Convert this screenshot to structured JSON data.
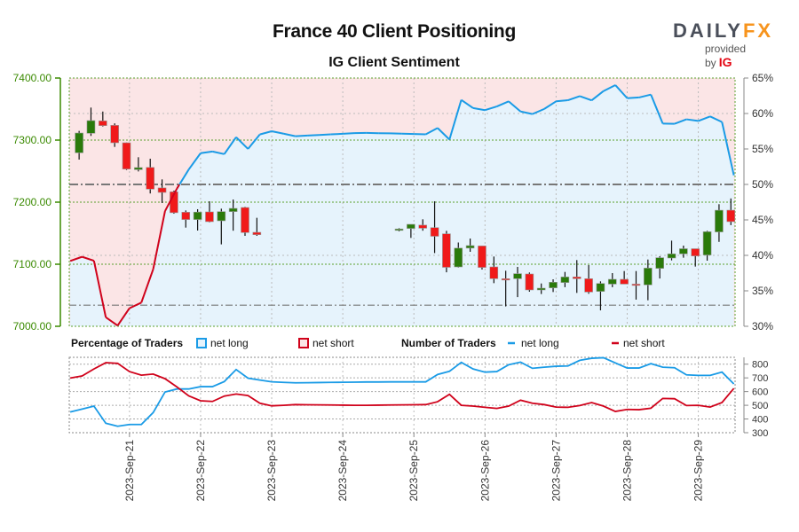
{
  "header": {
    "title": "France 40 Client Positioning",
    "subtitle": "IG Client Sentiment"
  },
  "logo": {
    "brand_a": "DAILY",
    "brand_b": "FX",
    "provided_by": "provided by",
    "ig": "IG"
  },
  "legend": {
    "pct_title": "Percentage of Traders",
    "pct_long": "net long",
    "pct_short": "net short",
    "num_title": "Number of Traders",
    "num_long": "net long",
    "num_short": "net short"
  },
  "colors": {
    "net_long": "#1a9be6",
    "net_short": "#d0021b",
    "bull": "#2a7a0a",
    "bear": "#f01a1a",
    "long_fill": "#e6f3fc",
    "short_fill": "#fbe5e6",
    "price_axis": "#3a8a00"
  },
  "chart_data": [
    {
      "type": "candlestick",
      "title": "France 40 Client Positioning",
      "price_ylim": [
        7000,
        7400
      ],
      "price_ticks": [
        "7000.00",
        "7100.00",
        "7200.00",
        "7300.00",
        "7400.00"
      ],
      "pct_ylim": [
        30,
        65
      ],
      "pct_ticks": [
        "30%",
        "35%",
        "40%",
        "45%",
        "50%",
        "55%",
        "60%",
        "65%"
      ],
      "reference_pct": 50,
      "reference_price": 7034,
      "grid": true,
      "xlim": [
        "2023-09-20 03:40",
        "2023-09-29 12:25"
      ],
      "x_ticks": [
        {
          "t": "2023-09-21 00:00",
          "label": "2023-Sep-21"
        },
        {
          "t": "2023-09-22 00:00",
          "label": "2023-Sep-22"
        },
        {
          "t": "2023-09-23 00:00",
          "label": "2023-Sep-23"
        },
        {
          "t": "2023-09-24 00:00",
          "label": "2023-Sep-24"
        },
        {
          "t": "2023-09-25 00:00",
          "label": "2023-Sep-25"
        },
        {
          "t": "2023-09-26 00:00",
          "label": "2023-Sep-26"
        },
        {
          "t": "2023-09-27 00:00",
          "label": "2023-Sep-27"
        },
        {
          "t": "2023-09-28 00:00",
          "label": "2023-Sep-28"
        },
        {
          "t": "2023-09-29 00:00",
          "label": "2023-Sep-29"
        }
      ],
      "candles_ohlc": [
        [
          "2023-09-20 07:00",
          7279.5,
          7314.8,
          7268.6,
          7311.4
        ],
        [
          "2023-09-20 11:00",
          7311.0,
          7352.4,
          7306.7,
          7331.4
        ],
        [
          "2023-09-20 15:00",
          7331.0,
          7346.0,
          7322.0,
          7323.3
        ],
        [
          "2023-09-20 19:00",
          7323.8,
          7327.0,
          7289.0,
          7295.7
        ],
        [
          "2023-09-20 23:00",
          7295.7,
          7296.0,
          7252.0,
          7253.3
        ],
        [
          "2023-09-21 03:00",
          7252.4,
          7272.4,
          7249.5,
          7255.7
        ],
        [
          "2023-09-21 07:00",
          7256.0,
          7270.0,
          7214.0,
          7221.0
        ],
        [
          "2023-09-21 11:00",
          7223.0,
          7236.7,
          7198.6,
          7215.7
        ],
        [
          "2023-09-21 15:00",
          7216.7,
          7218.6,
          7181.4,
          7183.0
        ],
        [
          "2023-09-21 19:00",
          7183.8,
          7186.7,
          7159.0,
          7172.0
        ],
        [
          "2023-09-21 23:00",
          7172.0,
          7188.6,
          7154.3,
          7184.0
        ],
        [
          "2023-09-22 03:00",
          7184.3,
          7201.4,
          7167.6,
          7168.6
        ],
        [
          "2023-09-22 07:00",
          7170.0,
          7189.5,
          7132.0,
          7184.8
        ],
        [
          "2023-09-22 11:00",
          7184.8,
          7204.3,
          7154.0,
          7190.0
        ],
        [
          "2023-09-22 15:00",
          7191.4,
          7192.4,
          7145.7,
          7151.0
        ],
        [
          "2023-09-22 19:00",
          7151.4,
          7174.8,
          7145.7,
          7147.6
        ],
        [
          "2023-09-24 19:00",
          7154.5,
          7158.0,
          7153.0,
          7156.8
        ],
        [
          "2023-09-24 23:00",
          7157.6,
          7164.3,
          7142.4,
          7164.3
        ],
        [
          "2023-09-25 03:00",
          7163.0,
          7172.4,
          7154.0,
          7158.0
        ],
        [
          "2023-09-25 07:00",
          7159.0,
          7201.4,
          7118.0,
          7145.0
        ],
        [
          "2023-09-25 11:00",
          7149.0,
          7153.8,
          7087.0,
          7095.0
        ],
        [
          "2023-09-25 15:00",
          7095.7,
          7135.0,
          7094.8,
          7126.0
        ],
        [
          "2023-09-25 19:00",
          7126.0,
          7141.4,
          7120.0,
          7130.0
        ],
        [
          "2023-09-25 23:00",
          7129.5,
          7129.5,
          7091.4,
          7094.8
        ],
        [
          "2023-09-26 03:00",
          7095.7,
          7112.4,
          7069.5,
          7076.7
        ],
        [
          "2023-09-26 07:00",
          7076.7,
          7089.5,
          7032.0,
          7075.2
        ],
        [
          "2023-09-26 11:00",
          7076.7,
          7095.7,
          7047.0,
          7084.8
        ],
        [
          "2023-09-26 15:00",
          7084.3,
          7086.7,
          7055.7,
          7058.6
        ],
        [
          "2023-09-26 19:00",
          7058.6,
          7069.0,
          7052.0,
          7061.4
        ],
        [
          "2023-09-26 23:00",
          7061.9,
          7075.7,
          7055.2,
          7071.0
        ],
        [
          "2023-09-27 03:00",
          7070.5,
          7087.6,
          7063.0,
          7079.5
        ],
        [
          "2023-09-27 07:00",
          7079.5,
          7106.7,
          7053.8,
          7076.7
        ],
        [
          "2023-09-27 11:00",
          7076.7,
          7098.6,
          7052.4,
          7055.2
        ],
        [
          "2023-09-27 15:00",
          7056.2,
          7072.4,
          7025.7,
          7069.0
        ],
        [
          "2023-09-27 19:00",
          7068.0,
          7085.7,
          7063.0,
          7075.7
        ],
        [
          "2023-09-27 23:00",
          7075.7,
          7089.0,
          7068.0,
          7068.0
        ],
        [
          "2023-09-28 03:00",
          7068.0,
          7089.0,
          7043.0,
          7066.7
        ],
        [
          "2023-09-28 07:00",
          7066.7,
          7107.6,
          7041.9,
          7093.8
        ],
        [
          "2023-09-28 11:00",
          7093.3,
          7112.9,
          7077.0,
          7110.5
        ],
        [
          "2023-09-28 15:00",
          7110.0,
          7138.0,
          7106.2,
          7116.7
        ],
        [
          "2023-09-28 19:00",
          7116.7,
          7130.0,
          7110.5,
          7125.0
        ],
        [
          "2023-09-28 23:00",
          7125.0,
          7125.0,
          7096.2,
          7113.3
        ],
        [
          "2023-09-29 03:00",
          7114.8,
          7153.8,
          7105.7,
          7152.4
        ],
        [
          "2023-09-29 07:00",
          7152.0,
          7196.7,
          7136.0,
          7187.0
        ],
        [
          "2023-09-29 11:00",
          7187.1,
          7206.0,
          7163.0,
          7168.6
        ]
      ]
    },
    {
      "type": "line",
      "traders_ylim": [
        300,
        850
      ],
      "traders_ticks": [
        "300",
        "400",
        "500",
        "600",
        "700",
        "800"
      ],
      "times": [
        "2023-09-20 04:00",
        "2023-09-20 08:00",
        "2023-09-20 12:00",
        "2023-09-20 16:00",
        "2023-09-20 20:00",
        "2023-09-21 00:00",
        "2023-09-21 04:00",
        "2023-09-21 08:00",
        "2023-09-21 12:00",
        "2023-09-21 16:00",
        "2023-09-21 20:00",
        "2023-09-22 00:00",
        "2023-09-22 04:00",
        "2023-09-22 08:00",
        "2023-09-22 12:00",
        "2023-09-22 16:00",
        "2023-09-22 20:00",
        "2023-09-23 00:00",
        "2023-09-23 04:00",
        "2023-09-23 08:00",
        "2023-09-23 12:00",
        "2023-09-23 16:00",
        "2023-09-23 20:00",
        "2023-09-24 00:00",
        "2023-09-24 04:00",
        "2023-09-24 08:00",
        "2023-09-24 12:00",
        "2023-09-24 16:00",
        "2023-09-24 20:00",
        "2023-09-25 00:00",
        "2023-09-25 04:00",
        "2023-09-25 08:00",
        "2023-09-25 12:00",
        "2023-09-25 16:00",
        "2023-09-25 20:00",
        "2023-09-26 00:00",
        "2023-09-26 04:00",
        "2023-09-26 08:00",
        "2023-09-26 12:00",
        "2023-09-26 16:00",
        "2023-09-26 20:00",
        "2023-09-27 00:00",
        "2023-09-27 04:00",
        "2023-09-27 08:00",
        "2023-09-27 12:00",
        "2023-09-27 16:00",
        "2023-09-27 20:00",
        "2023-09-28 00:00",
        "2023-09-28 04:00",
        "2023-09-28 08:00",
        "2023-09-28 12:00",
        "2023-09-28 16:00",
        "2023-09-28 20:00",
        "2023-09-29 00:00",
        "2023-09-29 04:00",
        "2023-09-29 08:00",
        "2023-09-29 12:00"
      ],
      "series": [
        {
          "name": "net long",
          "values": [
            451,
            472,
            494,
            369,
            347,
            360,
            360,
            447,
            597,
            619,
            619,
            636,
            636,
            673,
            761,
            698,
            684,
            671,
            667,
            664,
            665,
            666,
            667,
            668,
            669,
            670,
            670,
            671,
            671,
            671,
            671,
            725,
            748,
            813,
            765,
            742,
            746,
            796,
            815,
            770,
            778,
            785,
            787,
            828,
            843,
            847,
            809,
            772,
            772,
            804,
            778,
            774,
            722,
            718,
            718,
            742,
            656
          ]
        },
        {
          "name": "net short",
          "values": [
            699,
            714,
            765,
            811,
            806,
            746,
            720,
            728,
            694,
            634,
            569,
            533,
            528,
            567,
            582,
            571,
            515,
            496,
            500,
            505,
            504,
            503,
            502,
            501,
            500,
            500,
            501,
            502,
            503,
            504,
            505,
            526,
            580,
            500,
            494,
            485,
            477,
            494,
            537,
            515,
            505,
            487,
            485,
            498,
            520,
            494,
            455,
            470,
            468,
            479,
            550,
            548,
            498,
            500,
            487,
            520,
            623
          ]
        }
      ]
    }
  ]
}
